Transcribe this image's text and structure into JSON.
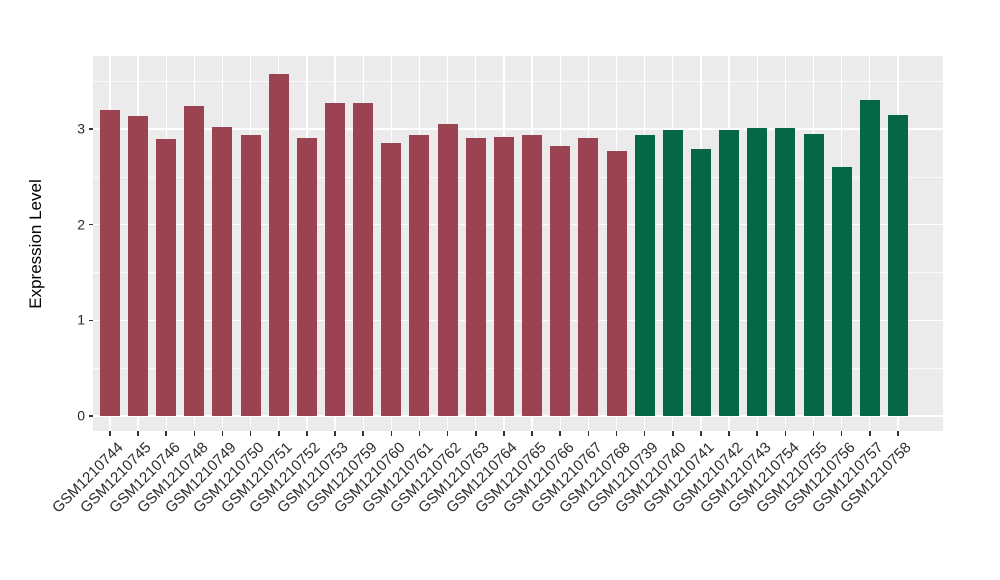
{
  "chart_data": {
    "type": "bar",
    "title": "",
    "xlabel": "",
    "ylabel": "Expression Level",
    "ylim": [
      0,
      3.76
    ],
    "yticks": [
      0,
      1,
      2,
      3
    ],
    "ytick_labels": [
      "0",
      "1",
      "2",
      "3"
    ],
    "grid": "on",
    "legend": "none",
    "panel_bg": "#EBEBEB",
    "grid_color": "#FFFFFF",
    "tick_color": "#333333",
    "categories": [
      "GSM1210744",
      "GSM1210745",
      "GSM1210746",
      "GSM1210748",
      "GSM1210749",
      "GSM1210750",
      "GSM1210751",
      "GSM1210752",
      "GSM1210753",
      "GSM1210759",
      "GSM1210760",
      "GSM1210761",
      "GSM1210762",
      "GSM1210763",
      "GSM1210764",
      "GSM1210765",
      "GSM1210766",
      "GSM1210767",
      "GSM1210768",
      "GSM1210739",
      "GSM1210740",
      "GSM1210741",
      "GSM1210742",
      "GSM1210743",
      "GSM1210754",
      "GSM1210755",
      "GSM1210756",
      "GSM1210757",
      "GSM1210758"
    ],
    "values": [
      3.2,
      3.14,
      2.89,
      3.24,
      3.02,
      2.94,
      3.57,
      2.91,
      3.27,
      3.27,
      2.85,
      2.94,
      3.05,
      2.9,
      2.92,
      2.94,
      2.82,
      2.9,
      2.77,
      2.94,
      2.99,
      2.79,
      2.99,
      3.01,
      3.01,
      2.95,
      2.6,
      3.3,
      3.15
    ],
    "groups": [
      "group1",
      "group1",
      "group1",
      "group1",
      "group1",
      "group1",
      "group1",
      "group1",
      "group1",
      "group1",
      "group1",
      "group1",
      "group1",
      "group1",
      "group1",
      "group1",
      "group1",
      "group1",
      "group1",
      "group2",
      "group2",
      "group2",
      "group2",
      "group2",
      "group2",
      "group2",
      "group2",
      "group2",
      "group2"
    ],
    "group_colors": {
      "group1": "#9C4351",
      "group2": "#056648"
    }
  }
}
